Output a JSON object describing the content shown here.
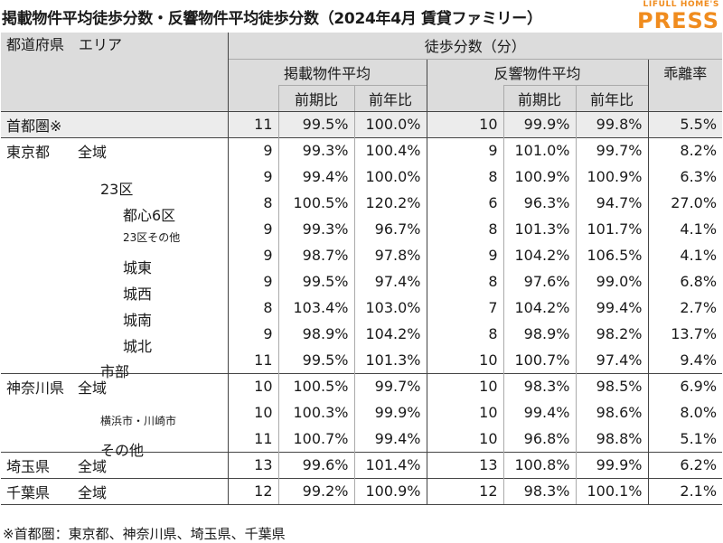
{
  "title": "掲載物件平均徒歩分数・反響物件平均徒歩分数（2024年4月 賃貸ファミリー）",
  "logo": {
    "top": "LIFULL HOME'S",
    "main": "PRESS",
    "color": "#f08c1e"
  },
  "header": {
    "region": "都道府県　エリア",
    "group": "徒歩分数（分）",
    "listed": "掲載物件平均",
    "responded": "反響物件平均",
    "divergence": "乖離率",
    "prev_period": "前期比",
    "prev_year": "前年比"
  },
  "rows": [
    {
      "pref": "首都圏※",
      "area": "",
      "l": "11",
      "lp": "99.5%",
      "ly": "100.0%",
      "r": "10",
      "rp": "99.9%",
      "ry": "99.8%",
      "d": "5.5%"
    },
    {
      "pref": "東京都",
      "area": "全域",
      "l": "9",
      "lp": "99.3%",
      "ly": "100.4%",
      "r": "9",
      "rp": "101.0%",
      "ry": "99.7%",
      "d": "8.2%"
    },
    {
      "pref": "",
      "area": "23区",
      "l": "9",
      "lp": "99.4%",
      "ly": "100.0%",
      "r": "8",
      "rp": "100.9%",
      "ry": "100.9%",
      "d": "6.3%"
    },
    {
      "pref": "",
      "area": "都心6区",
      "l": "8",
      "lp": "100.5%",
      "ly": "120.2%",
      "r": "6",
      "rp": "96.3%",
      "ry": "94.7%",
      "d": "27.0%"
    },
    {
      "pref": "",
      "area": "23区その他",
      "l": "9",
      "lp": "99.3%",
      "ly": "96.7%",
      "r": "8",
      "rp": "101.3%",
      "ry": "101.7%",
      "d": "4.1%"
    },
    {
      "pref": "",
      "area": "城東",
      "l": "9",
      "lp": "98.7%",
      "ly": "97.8%",
      "r": "9",
      "rp": "104.2%",
      "ry": "106.5%",
      "d": "4.1%"
    },
    {
      "pref": "",
      "area": "城西",
      "l": "9",
      "lp": "99.5%",
      "ly": "97.4%",
      "r": "8",
      "rp": "97.6%",
      "ry": "99.0%",
      "d": "6.8%"
    },
    {
      "pref": "",
      "area": "城南",
      "l": "8",
      "lp": "103.4%",
      "ly": "103.0%",
      "r": "7",
      "rp": "104.2%",
      "ry": "99.4%",
      "d": "2.7%"
    },
    {
      "pref": "",
      "area": "城北",
      "l": "9",
      "lp": "98.9%",
      "ly": "104.2%",
      "r": "8",
      "rp": "98.9%",
      "ry": "98.2%",
      "d": "13.7%"
    },
    {
      "pref": "",
      "area": "市部",
      "l": "11",
      "lp": "99.5%",
      "ly": "101.3%",
      "r": "10",
      "rp": "100.7%",
      "ry": "97.4%",
      "d": "9.4%"
    },
    {
      "pref": "神奈川県",
      "area": "全域",
      "l": "10",
      "lp": "100.5%",
      "ly": "99.7%",
      "r": "10",
      "rp": "98.3%",
      "ry": "98.5%",
      "d": "6.9%"
    },
    {
      "pref": "",
      "area": "横浜市・川崎市",
      "l": "10",
      "lp": "100.3%",
      "ly": "99.9%",
      "r": "10",
      "rp": "99.4%",
      "ry": "98.6%",
      "d": "8.0%"
    },
    {
      "pref": "",
      "area": "その他",
      "l": "11",
      "lp": "100.7%",
      "ly": "99.4%",
      "r": "10",
      "rp": "96.8%",
      "ry": "98.8%",
      "d": "5.1%"
    },
    {
      "pref": "埼玉県",
      "area": "全域",
      "l": "13",
      "lp": "99.6%",
      "ly": "101.4%",
      "r": "13",
      "rp": "100.8%",
      "ry": "99.9%",
      "d": "6.2%"
    },
    {
      "pref": "千葉県",
      "area": "全域",
      "l": "12",
      "lp": "99.2%",
      "ly": "100.9%",
      "r": "12",
      "rp": "98.3%",
      "ry": "100.1%",
      "d": "2.1%"
    }
  ],
  "note": "※首都圏：東京都、神奈川県、埼玉県、千葉県"
}
